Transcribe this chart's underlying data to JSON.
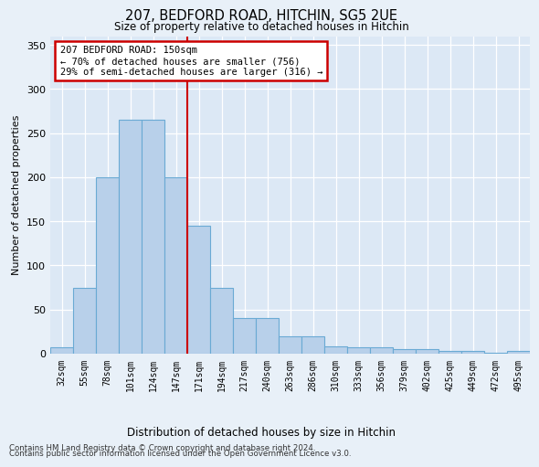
{
  "title1": "207, BEDFORD ROAD, HITCHIN, SG5 2UE",
  "title2": "Size of property relative to detached houses in Hitchin",
  "xlabel": "Distribution of detached houses by size in Hitchin",
  "ylabel": "Number of detached properties",
  "bar_labels": [
    "32sqm",
    "55sqm",
    "78sqm",
    "101sqm",
    "124sqm",
    "147sqm",
    "171sqm",
    "194sqm",
    "217sqm",
    "240sqm",
    "263sqm",
    "286sqm",
    "310sqm",
    "333sqm",
    "356sqm",
    "379sqm",
    "402sqm",
    "425sqm",
    "449sqm",
    "472sqm",
    "495sqm"
  ],
  "bar_values": [
    7,
    75,
    200,
    265,
    265,
    200,
    145,
    75,
    40,
    40,
    20,
    20,
    8,
    7,
    7,
    5,
    5,
    3,
    3,
    1,
    3
  ],
  "bar_color": "#b8d0ea",
  "bar_edge_color": "#6aaad4",
  "vline_color": "#cc0000",
  "vline_x_index": 5.5,
  "annotation_text": "207 BEDFORD ROAD: 150sqm\n← 70% of detached houses are smaller (756)\n29% of semi-detached houses are larger (316) →",
  "annotation_box_facecolor": "#ffffff",
  "annotation_box_edgecolor": "#cc0000",
  "ylim": [
    0,
    360
  ],
  "yticks": [
    0,
    50,
    100,
    150,
    200,
    250,
    300,
    350
  ],
  "footer1": "Contains HM Land Registry data © Crown copyright and database right 2024.",
  "footer2": "Contains public sector information licensed under the Open Government Licence v3.0.",
  "bg_color": "#dce8f5",
  "fig_bg_color": "#e8f0f8"
}
